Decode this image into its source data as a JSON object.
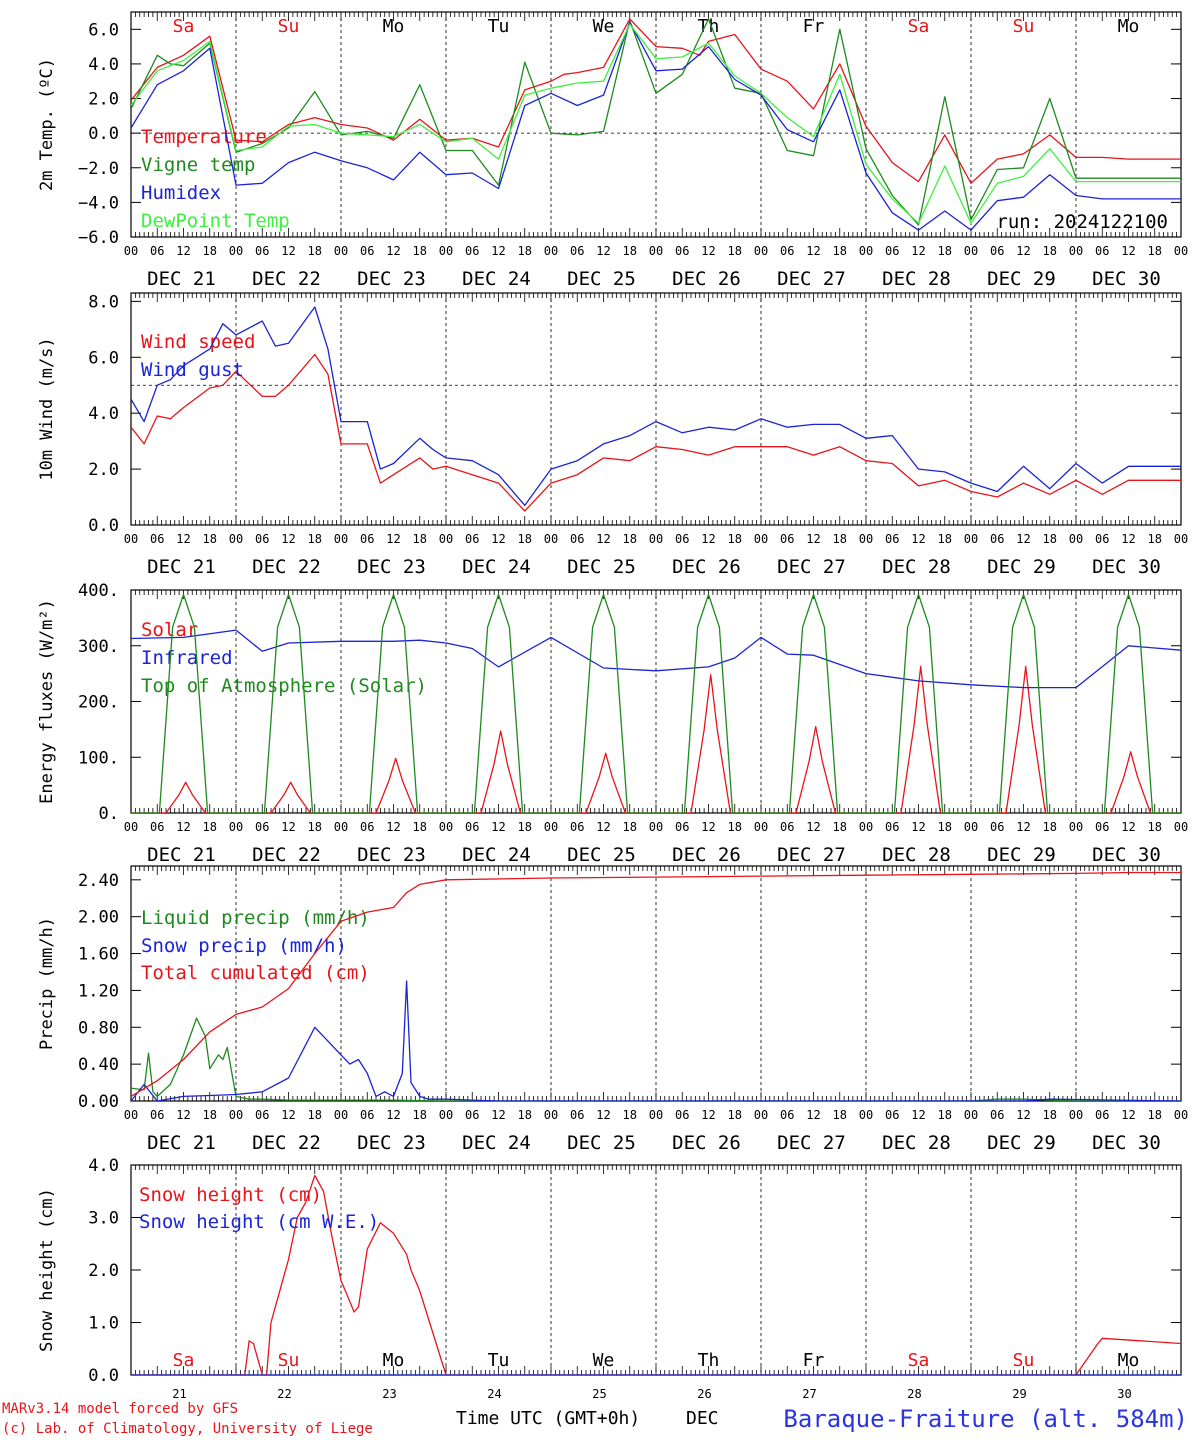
{
  "colors": {
    "red": "#e8141a",
    "green": "#1e8a1e",
    "blue": "#1a24d6",
    "lightgreen": "#3ef03e",
    "weekend": "#e8141a",
    "weekday": "#000000",
    "footer_red": "#e8141a",
    "footer_blue": "#2a35e0"
  },
  "weekdays": [
    {
      "label": "Sa",
      "weekend": true
    },
    {
      "label": "Su",
      "weekend": true
    },
    {
      "label": "Mo",
      "weekend": false
    },
    {
      "label": "Tu",
      "weekend": false
    },
    {
      "label": "We",
      "weekend": false
    },
    {
      "label": "Th",
      "weekend": false
    },
    {
      "label": "Fr",
      "weekend": false
    },
    {
      "label": "Sa",
      "weekend": true
    },
    {
      "label": "Su",
      "weekend": true
    },
    {
      "label": "Mo",
      "weekend": false
    }
  ],
  "date_labels": [
    "DEC 21",
    "DEC 22",
    "DEC 23",
    "DEC 24",
    "DEC 25",
    "DEC 26",
    "DEC 27",
    "DEC 28",
    "DEC 29",
    "DEC 30"
  ],
  "hour_labels": [
    "00",
    "06",
    "12",
    "18"
  ],
  "day_numbers": [
    "21",
    "22",
    "23",
    "24",
    "25",
    "26",
    "27",
    "28",
    "29",
    "30"
  ],
  "footer": {
    "model": "MARv3.14 model forced by GFS",
    "copyright": "(c) Lab. of Climatology, University of Liege",
    "time_label": "Time UTC (GMT+0h)",
    "month": "DEC",
    "station": "Baraque-Fraiture (alt. 584m)"
  },
  "chart_data": [
    {
      "type": "line",
      "ylabel": "2m Temp. (ºC)",
      "ylim": [
        -6,
        7
      ],
      "yticks": [
        6.0,
        4.0,
        2.0,
        0.0,
        -2.0,
        -4.0,
        -6.0
      ],
      "ytick_labels": [
        "6.0",
        "4.0",
        "2.0",
        "0.0",
        "−2.0",
        "−4.0",
        "−6.0"
      ],
      "xlim_hours": [
        0,
        240
      ],
      "annotation": "run: 2024122100",
      "show_weekdays": true,
      "show_dates": true,
      "reference_line": 0,
      "series": [
        {
          "name": "Temperature",
          "color": "red",
          "x": [
            0,
            6,
            12,
            18,
            24,
            30,
            36,
            42,
            48,
            54,
            60,
            66,
            72,
            78,
            84,
            90,
            96,
            99,
            102,
            108,
            114,
            120,
            126,
            130,
            132,
            138,
            144,
            150,
            156,
            162,
            168,
            174,
            180,
            186,
            192,
            198,
            204,
            210,
            216,
            222,
            228,
            234,
            240
          ],
          "y": [
            1.9,
            3.8,
            4.5,
            5.6,
            -0.4,
            -0.5,
            0.5,
            0.9,
            0.5,
            0.3,
            -0.4,
            0.8,
            -0.4,
            -0.3,
            -0.8,
            2.5,
            3.0,
            3.4,
            3.5,
            3.8,
            6.6,
            5.0,
            4.9,
            4.5,
            5.3,
            5.7,
            3.7,
            3.0,
            1.4,
            4.0,
            0.4,
            -1.7,
            -2.8,
            -0.1,
            -2.9,
            -1.5,
            -1.2,
            -0.1,
            -1.4,
            -1.4,
            -1.5,
            -1.5,
            -1.5
          ]
        },
        {
          "name": "Vigne temp",
          "color": "green",
          "x": [
            0,
            6,
            9,
            12,
            18,
            24,
            30,
            36,
            42,
            48,
            54,
            60,
            66,
            72,
            78,
            84,
            90,
            96,
            102,
            108,
            114,
            120,
            126,
            132,
            138,
            144,
            150,
            156,
            162,
            168,
            174,
            180,
            186,
            192,
            198,
            204,
            210,
            216,
            222,
            228,
            234,
            240
          ],
          "y": [
            1.4,
            4.5,
            4.0,
            3.9,
            5.2,
            -1.1,
            -0.6,
            0.3,
            2.4,
            -0.1,
            0.1,
            -0.3,
            2.8,
            -1.0,
            -1.0,
            -3.0,
            4.1,
            0.0,
            -0.1,
            0.1,
            6.5,
            2.3,
            3.4,
            6.6,
            2.6,
            2.3,
            -1.0,
            -1.3,
            6.0,
            -0.9,
            -3.6,
            -5.3,
            2.1,
            -5.0,
            -2.1,
            -2.0,
            2.0,
            -2.6,
            -2.6,
            -2.6,
            -2.6,
            -2.6
          ]
        },
        {
          "name": "Humidex",
          "color": "blue",
          "x": [
            0,
            6,
            12,
            18,
            24,
            30,
            36,
            42,
            48,
            54,
            60,
            66,
            72,
            78,
            84,
            90,
            96,
            102,
            108,
            114,
            120,
            126,
            132,
            138,
            144,
            150,
            156,
            162,
            168,
            174,
            180,
            186,
            192,
            198,
            204,
            210,
            216,
            222,
            228,
            234,
            240
          ],
          "y": [
            0.3,
            2.8,
            3.6,
            4.9,
            -3.0,
            -2.9,
            -1.7,
            -1.1,
            -1.6,
            -2.0,
            -2.7,
            -1.1,
            -2.4,
            -2.3,
            -3.2,
            1.6,
            2.3,
            1.6,
            2.2,
            6.4,
            3.6,
            3.7,
            5.0,
            3.1,
            2.2,
            0.2,
            -0.5,
            2.5,
            -2.3,
            -4.6,
            -5.6,
            -4.5,
            -5.6,
            -3.9,
            -3.7,
            -2.4,
            -3.6,
            -3.8,
            -3.8,
            -3.8,
            -3.8
          ]
        },
        {
          "name": "DewPoint Temp",
          "color": "lightgreen",
          "x": [
            0,
            6,
            12,
            18,
            24,
            30,
            36,
            42,
            48,
            54,
            60,
            66,
            72,
            78,
            84,
            90,
            96,
            102,
            108,
            114,
            120,
            126,
            132,
            138,
            144,
            150,
            156,
            162,
            168,
            174,
            180,
            186,
            192,
            198,
            204,
            210,
            216,
            222,
            228,
            234,
            240
          ],
          "y": [
            1.6,
            3.6,
            4.2,
            5.3,
            -1.0,
            -0.8,
            0.4,
            0.5,
            0.0,
            -0.1,
            -0.2,
            0.5,
            -0.5,
            -0.3,
            -1.5,
            2.2,
            2.6,
            2.9,
            3.0,
            6.3,
            4.3,
            4.4,
            5.2,
            3.3,
            2.3,
            0.9,
            -0.2,
            3.4,
            -1.8,
            -3.8,
            -5.2,
            -1.9,
            -5.2,
            -2.9,
            -2.5,
            -0.9,
            -2.8,
            -2.8,
            -2.8,
            -2.8,
            -2.8
          ]
        }
      ]
    },
    {
      "type": "line",
      "ylabel": "10m Wind (m/s)",
      "ylim": [
        0,
        8.3
      ],
      "yticks": [
        8.0,
        6.0,
        4.0,
        2.0,
        0.0
      ],
      "ytick_labels": [
        "8.0",
        "6.0",
        "4.0",
        "2.0",
        "0.0"
      ],
      "xlim_hours": [
        0,
        240
      ],
      "show_weekdays": false,
      "show_dates": true,
      "reference_line": 5,
      "series": [
        {
          "name": "Wind speed",
          "color": "red",
          "x": [
            0,
            3,
            6,
            9,
            12,
            18,
            21,
            24,
            30,
            33,
            36,
            42,
            45,
            48,
            54,
            57,
            60,
            66,
            69,
            72,
            78,
            84,
            90,
            96,
            102,
            108,
            114,
            120,
            126,
            132,
            138,
            144,
            150,
            156,
            162,
            168,
            174,
            180,
            186,
            192,
            198,
            204,
            210,
            216,
            222,
            228,
            234,
            240
          ],
          "y": [
            3.5,
            2.9,
            3.9,
            3.8,
            4.2,
            4.9,
            5.0,
            5.5,
            4.6,
            4.6,
            5.0,
            6.1,
            5.4,
            2.9,
            2.9,
            1.5,
            1.8,
            2.4,
            2.0,
            2.1,
            1.8,
            1.5,
            0.5,
            1.5,
            1.8,
            2.4,
            2.3,
            2.8,
            2.7,
            2.5,
            2.8,
            2.8,
            2.8,
            2.5,
            2.8,
            2.3,
            2.2,
            1.4,
            1.6,
            1.2,
            1.0,
            1.5,
            1.1,
            1.6,
            1.1,
            1.6,
            1.6,
            1.6
          ]
        },
        {
          "name": "Wind gust",
          "color": "blue",
          "x": [
            0,
            3,
            6,
            9,
            12,
            18,
            21,
            24,
            30,
            33,
            36,
            42,
            45,
            48,
            54,
            57,
            60,
            66,
            69,
            72,
            78,
            84,
            90,
            96,
            102,
            108,
            114,
            120,
            126,
            132,
            138,
            144,
            150,
            156,
            162,
            168,
            174,
            180,
            186,
            192,
            198,
            204,
            210,
            216,
            222,
            228,
            234,
            240
          ],
          "y": [
            4.5,
            3.7,
            5.0,
            5.2,
            5.7,
            6.3,
            7.2,
            6.8,
            7.3,
            6.4,
            6.5,
            7.8,
            6.3,
            3.7,
            3.7,
            2.0,
            2.2,
            3.1,
            2.7,
            2.4,
            2.3,
            1.8,
            0.7,
            2.0,
            2.3,
            2.9,
            3.2,
            3.7,
            3.3,
            3.5,
            3.4,
            3.8,
            3.5,
            3.6,
            3.6,
            3.1,
            3.2,
            2.0,
            1.9,
            1.5,
            1.2,
            2.1,
            1.3,
            2.2,
            1.5,
            2.1,
            2.1,
            2.1
          ]
        }
      ]
    },
    {
      "type": "line",
      "ylabel": "Energy fluxes (W/m²)",
      "ylim": [
        0,
        400
      ],
      "yticks": [
        400,
        300,
        200,
        100,
        0
      ],
      "ytick_labels": [
        "400.",
        "300.",
        "200.",
        "100.",
        "0."
      ],
      "xlim_hours": [
        0,
        240
      ],
      "show_weekdays": false,
      "show_dates": true,
      "series": [
        {
          "name": "Solar",
          "color": "red",
          "peaks": [
            55,
            55,
            98,
            147,
            107,
            248,
            155,
            263,
            263,
            110
          ]
        },
        {
          "name": "Infrared",
          "color": "blue",
          "x": [
            0,
            12,
            24,
            30,
            36,
            48,
            60,
            66,
            72,
            78,
            84,
            96,
            108,
            120,
            132,
            138,
            144,
            150,
            156,
            168,
            180,
            192,
            204,
            216,
            228,
            240
          ],
          "y": [
            313,
            315,
            328,
            290,
            305,
            308,
            308,
            310,
            305,
            295,
            262,
            315,
            260,
            255,
            262,
            278,
            315,
            285,
            283,
            250,
            237,
            230,
            225,
            225,
            300,
            292
          ]
        },
        {
          "name": "Top of Atmosphere (Solar)",
          "color": "green",
          "peak": 392
        }
      ]
    },
    {
      "type": "line",
      "ylabel": "Precip (mm/h)",
      "ylim": [
        0,
        2.55
      ],
      "yticks": [
        2.4,
        2.0,
        1.6,
        1.2,
        0.8,
        0.4,
        0.0
      ],
      "ytick_labels": [
        "2.40",
        "2.00",
        "1.60",
        "1.20",
        "0.80",
        "0.40",
        "0.00"
      ],
      "xlim_hours": [
        0,
        240
      ],
      "show_weekdays": false,
      "show_dates": true,
      "series": [
        {
          "name": "Liquid precip (mm/h)",
          "color": "green",
          "x": [
            0,
            3,
            4,
            5,
            6,
            9,
            12,
            15,
            17,
            18,
            20,
            21,
            22,
            24,
            27,
            30,
            36,
            48,
            60,
            72,
            84,
            96,
            108,
            120,
            132,
            144,
            156,
            168,
            180,
            192,
            198,
            204,
            210,
            216,
            240
          ],
          "y": [
            0.14,
            0.12,
            0.52,
            0.1,
            0.05,
            0.18,
            0.5,
            0.9,
            0.7,
            0.35,
            0.5,
            0.45,
            0.58,
            0.05,
            0.02,
            0.02,
            0.01,
            0.01,
            0.01,
            0.0,
            0.0,
            0.0,
            0.0,
            0.0,
            0.0,
            0.0,
            0.0,
            0.0,
            0.0,
            0.0,
            0.02,
            0.02,
            0.01,
            0.0,
            0.0
          ]
        },
        {
          "name": "Snow precip (mm/h)",
          "color": "blue",
          "x": [
            0,
            3,
            6,
            12,
            18,
            24,
            30,
            36,
            42,
            45,
            48,
            50,
            52,
            54,
            56,
            58,
            60,
            62,
            63,
            64,
            66,
            68,
            72,
            78,
            84,
            96,
            120,
            150,
            180,
            204,
            210,
            240
          ],
          "y": [
            0.0,
            0.18,
            0.0,
            0.05,
            0.06,
            0.07,
            0.1,
            0.25,
            0.8,
            0.65,
            0.5,
            0.4,
            0.45,
            0.3,
            0.05,
            0.1,
            0.05,
            0.3,
            1.3,
            0.2,
            0.05,
            0.02,
            0.02,
            0.01,
            0.0,
            0.0,
            0.0,
            0.0,
            0.0,
            0.0,
            0.02,
            0.0
          ]
        },
        {
          "name": "Total cumulated (cm)",
          "color": "red",
          "x": [
            0,
            6,
            12,
            18,
            24,
            30,
            36,
            42,
            48,
            54,
            60,
            63,
            66,
            72,
            96,
            120,
            144,
            168,
            192,
            216,
            228,
            240
          ],
          "y": [
            0.05,
            0.22,
            0.45,
            0.75,
            0.94,
            1.02,
            1.22,
            1.6,
            1.95,
            2.05,
            2.1,
            2.26,
            2.35,
            2.4,
            2.42,
            2.43,
            2.44,
            2.45,
            2.46,
            2.47,
            2.48,
            2.48
          ]
        }
      ]
    },
    {
      "type": "line",
      "ylabel": "Snow height (cm)",
      "ylim": [
        0,
        4.0
      ],
      "yticks": [
        4.0,
        3.0,
        2.0,
        1.0,
        0.0
      ],
      "ytick_labels": [
        "4.0",
        "3.0",
        "2.0",
        "1.0",
        "0.0"
      ],
      "xlim_hours": [
        0,
        240
      ],
      "show_weekdays": true,
      "show_dates": false,
      "series": [
        {
          "name": "Snow height (cm)",
          "color": "red",
          "x": [
            0,
            24,
            26,
            27,
            28,
            30,
            31,
            32,
            36,
            38,
            40,
            42,
            44,
            46,
            48,
            50,
            51,
            52,
            54,
            57,
            60,
            63,
            64,
            66,
            72,
            78,
            84,
            96,
            216,
            221,
            222,
            240
          ],
          "y": [
            0,
            0,
            0,
            0.65,
            0.6,
            0,
            0,
            1.0,
            2.2,
            3.0,
            3.3,
            3.8,
            3.5,
            2.6,
            1.8,
            1.4,
            1.2,
            1.3,
            2.4,
            2.9,
            2.7,
            2.3,
            2.0,
            1.6,
            0.0,
            0.0,
            0.0,
            0.0,
            0.0,
            0.6,
            0.7,
            0.6
          ]
        },
        {
          "name": "Snow height (cm W.E.)",
          "color": "blue",
          "x": [
            0,
            240
          ],
          "y": [
            0,
            0
          ]
        }
      ]
    }
  ]
}
